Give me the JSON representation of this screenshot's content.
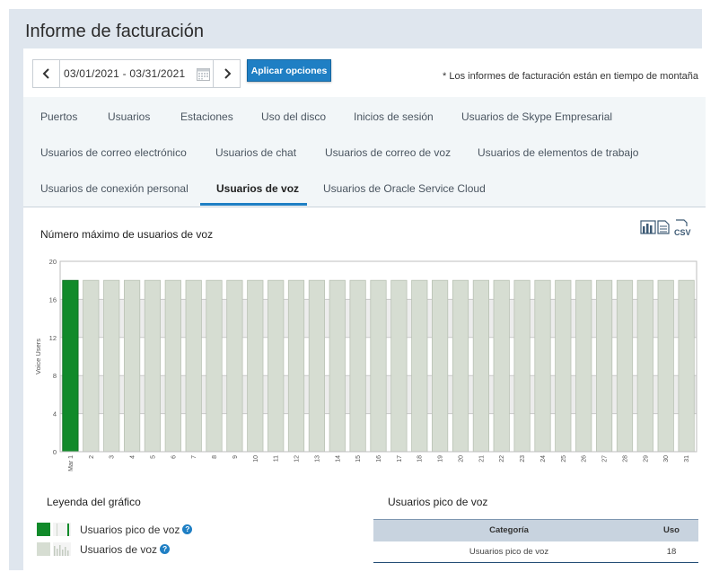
{
  "page_title": "Informe de facturación",
  "date_range": {
    "value": "03/01/2021 - 03/31/2021",
    "prev_icon": "chevron-left-icon",
    "next_icon": "chevron-right-icon",
    "calendar_icon": "calendar-icon"
  },
  "apply_button": "Aplicar opciones",
  "timezone_note": "* Los informes de facturación están en tiempo de montaña",
  "tabs": [
    {
      "label": "Puertos",
      "active": false
    },
    {
      "label": "Usuarios",
      "active": false
    },
    {
      "label": "Estaciones",
      "active": false
    },
    {
      "label": "Uso del disco",
      "active": false
    },
    {
      "label": "Inicios de sesión",
      "active": false
    },
    {
      "label": "Usuarios de Skype Empresarial",
      "active": false
    },
    {
      "label": "Usuarios de correo electrónico",
      "active": false
    },
    {
      "label": "Usuarios de chat",
      "active": false
    },
    {
      "label": "Usuarios de correo de voz",
      "active": false
    },
    {
      "label": "Usuarios de elementos de trabajo",
      "active": false
    },
    {
      "label": "Usuarios de conexión personal",
      "active": false
    },
    {
      "label": "Usuarios de voz",
      "active": true
    },
    {
      "label": "Usuarios de Oracle Service Cloud",
      "active": false
    }
  ],
  "chart_title": "Número máximo de usuarios de voz",
  "export_icons": [
    "chart-export-icon",
    "document-export-icon",
    "csv-export-icon"
  ],
  "chart_data": {
    "type": "bar",
    "ylabel": "Voice Users",
    "xlabel": "",
    "ylim": [
      0,
      20
    ],
    "yticks": [
      0,
      4,
      8,
      12,
      16,
      20
    ],
    "grid": true,
    "categories": [
      "Mar 1",
      "2",
      "3",
      "4",
      "5",
      "6",
      "7",
      "8",
      "9",
      "10",
      "11",
      "12",
      "13",
      "14",
      "15",
      "16",
      "17",
      "18",
      "19",
      "20",
      "21",
      "22",
      "23",
      "24",
      "25",
      "26",
      "27",
      "28",
      "29",
      "30",
      "31"
    ],
    "values": [
      18,
      18,
      18,
      18,
      18,
      18,
      18,
      18,
      18,
      18,
      18,
      18,
      18,
      18,
      18,
      18,
      18,
      18,
      18,
      18,
      18,
      18,
      18,
      18,
      18,
      18,
      18,
      18,
      18,
      18,
      18
    ],
    "highlight_index": 0,
    "colors": {
      "highlight": "#118a2a",
      "normal": "#d6ddd2",
      "normal_stroke": "#b9c2b4",
      "band": "#ececec"
    }
  },
  "legend": {
    "title": "Leyenda del gráfico",
    "items": [
      {
        "label": "Usuarios pico de voz",
        "color": "#118a2a"
      },
      {
        "label": "Usuarios de voz",
        "color": "#d6ddd2"
      }
    ],
    "help_glyph": "?"
  },
  "peak": {
    "title": "Usuarios pico de voz",
    "headers": {
      "category": "Categoría",
      "usage": "Uso"
    },
    "rows": [
      {
        "category": "Usuarios pico de voz",
        "usage": "18"
      }
    ]
  }
}
